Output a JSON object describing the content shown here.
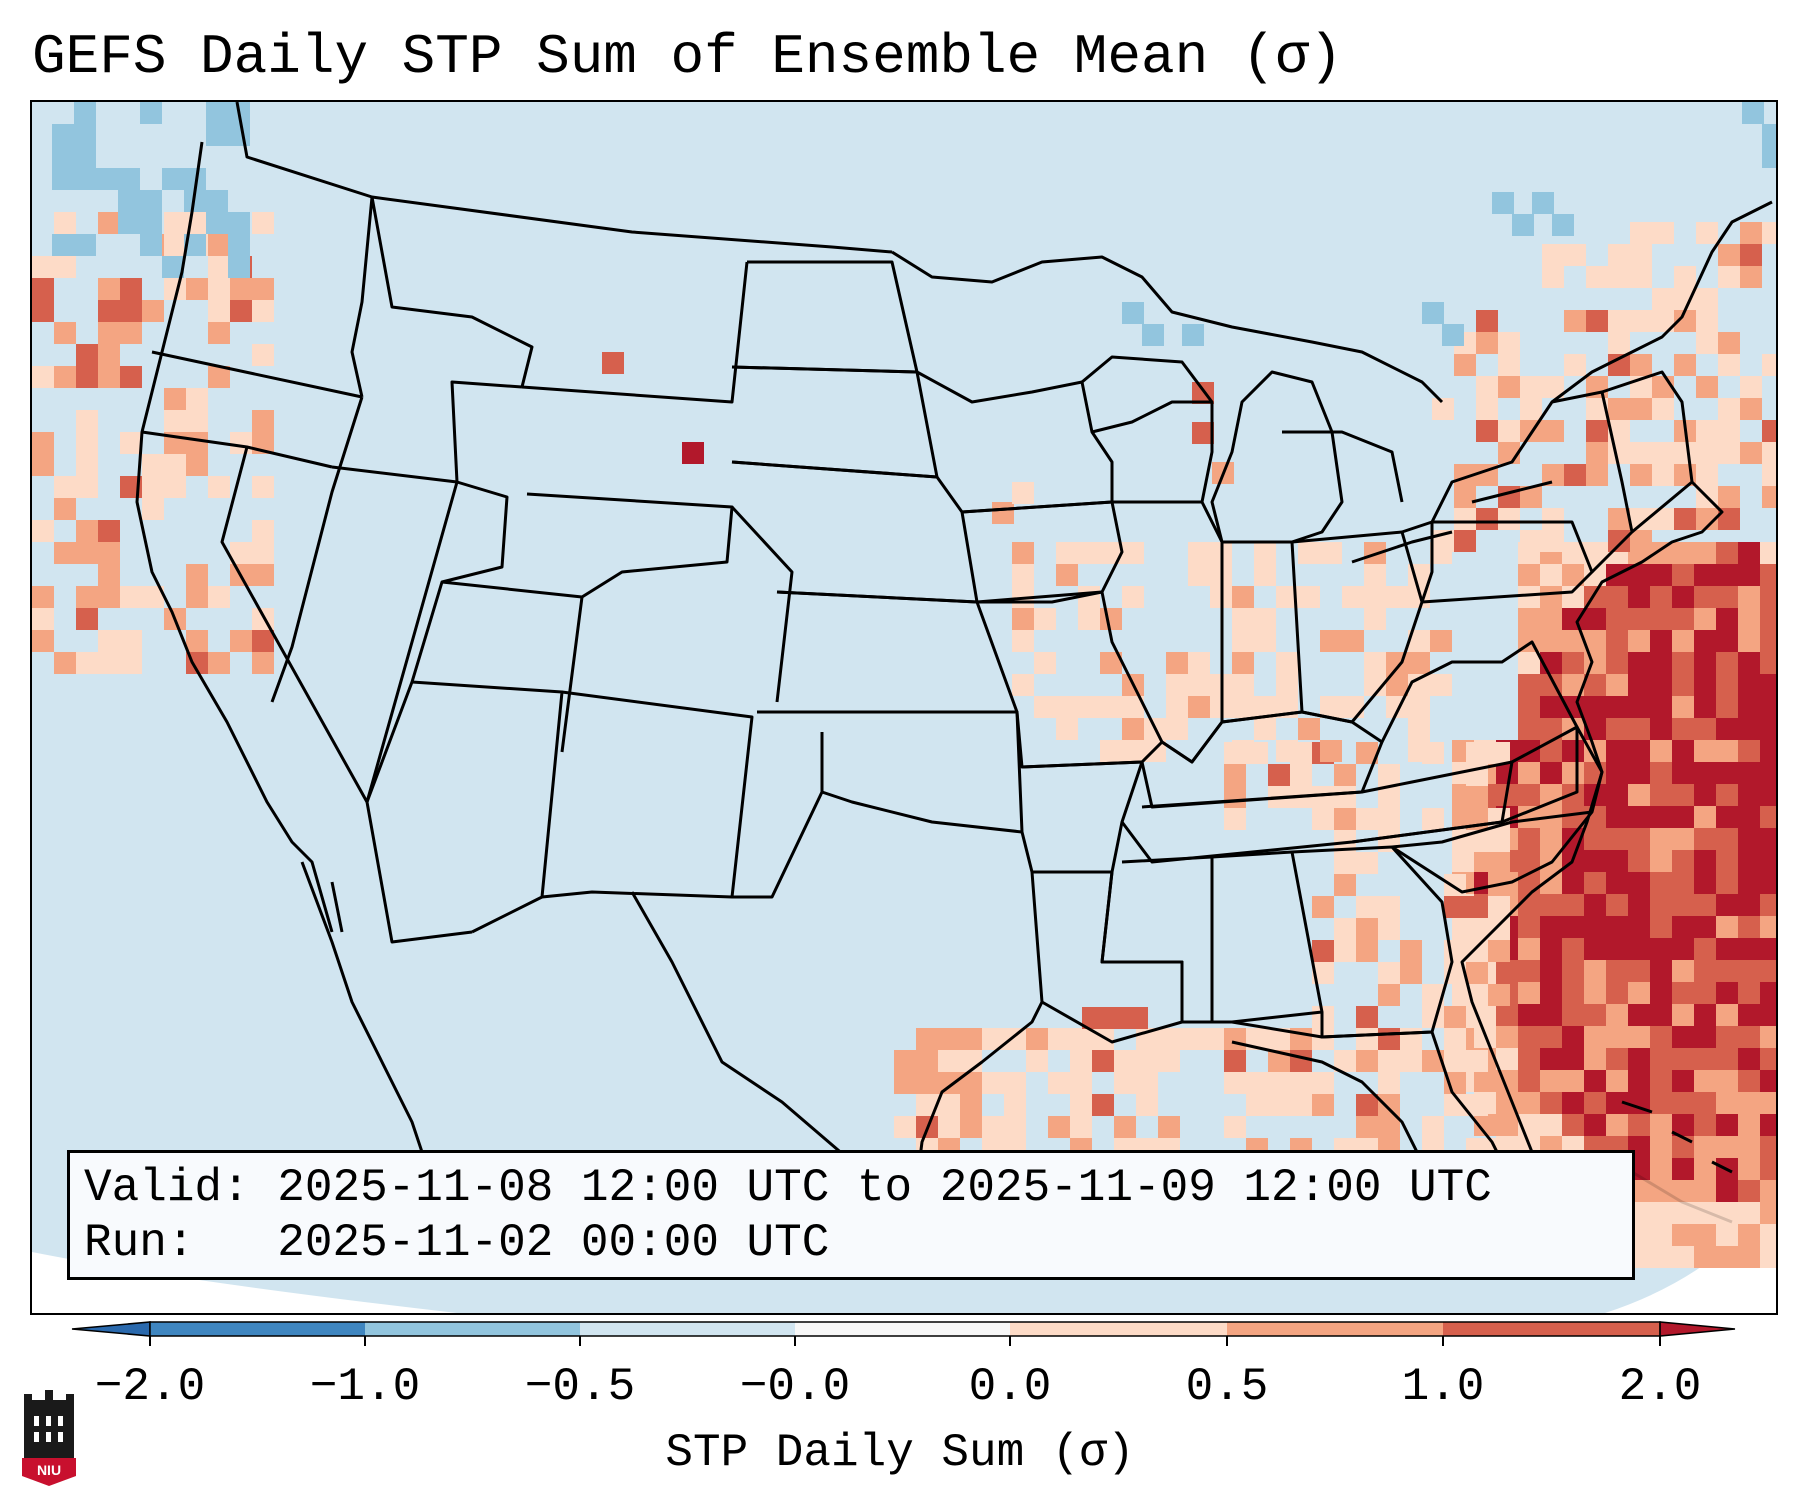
{
  "title": "GEFS Daily STP Sum of Ensemble Mean (σ)",
  "info": {
    "valid_label": "Valid:",
    "valid_value": "2025-11-08 12:00 UTC to 2025-11-09 12:00 UTC",
    "run_label": "Run:",
    "run_value": "2025-11-02 00:00 UTC"
  },
  "colorbar": {
    "label": "STP Daily Sum (σ)",
    "ticks": [
      "−2.0",
      "−1.0",
      "−0.5",
      "−0.0",
      "0.0",
      "0.5",
      "1.0",
      "2.0"
    ],
    "colors": [
      "#3f86c0",
      "#92c5de",
      "#d1e5f0",
      "#f7f7f7",
      "#fddbc7",
      "#f4a582",
      "#d6604d",
      "#b2182b"
    ],
    "extend_low_color": "#2a69ad",
    "extend_high_color": "#b2182b"
  },
  "chart_data": {
    "type": "heatmap",
    "title": "GEFS Daily STP Sum of Ensemble Mean (σ)",
    "variable": "STP Daily Sum (σ)",
    "region_description": "Continental United States",
    "levels": [
      -2.0,
      -1.0,
      -0.5,
      -0.0,
      0.0,
      0.5,
      1.0,
      2.0
    ],
    "background_level": "-0.5 to -0.0"
  },
  "logo_text": "NIU",
  "icons": {
    "logo": "university-tower-icon"
  }
}
